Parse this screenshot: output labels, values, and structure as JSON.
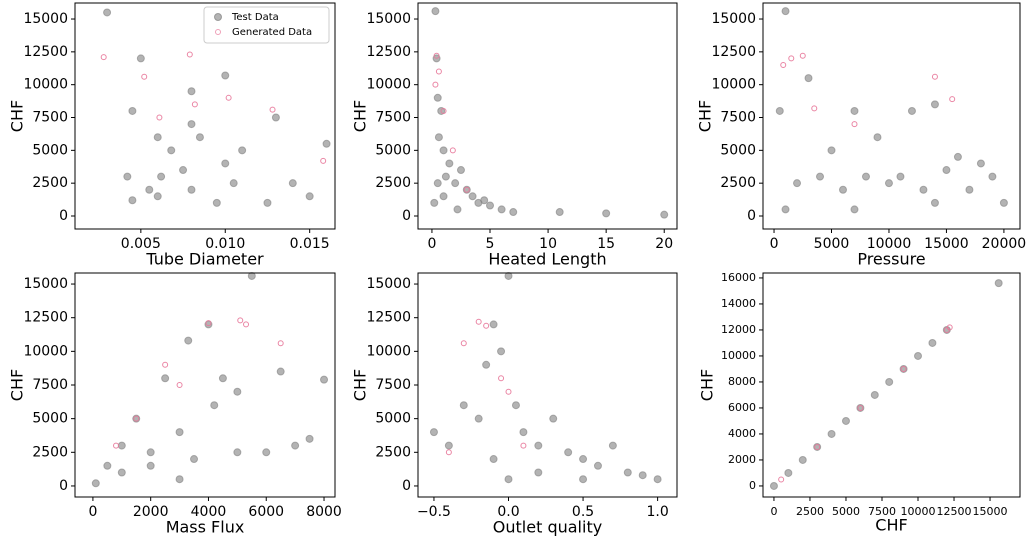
{
  "chart_data": [
    {
      "type": "scatter",
      "xlabel": "Tube Diameter",
      "ylabel": "CHF",
      "legend": "upper right",
      "xlim": [
        0.0011,
        0.0165
      ],
      "ylim": [
        -990,
        16220
      ],
      "xticks": [
        0.005,
        {
          "value": 0.01,
          "label": "0.010"
        },
        0.015
      ],
      "yticks": [
        0,
        2500,
        5000,
        7500,
        10000,
        12500,
        15000
      ],
      "series": [
        {
          "name": "Test Data",
          "color": "#808080",
          "marker": "filled",
          "x": [
            0.003,
            0.0042,
            0.0045,
            0.005,
            0.0055,
            0.006,
            0.006,
            0.0068,
            0.0075,
            0.008,
            0.008,
            0.008,
            0.0085,
            0.0095,
            0.01,
            0.01,
            0.0105,
            0.011,
            0.0125,
            0.013,
            0.014,
            0.015,
            0.016,
            0.0045,
            0.0062
          ],
          "values": [
            15500,
            3000,
            8000,
            12000,
            2000,
            6000,
            1500,
            5000,
            3500,
            9500,
            7000,
            2000,
            6000,
            1000,
            10700,
            4000,
            2500,
            5000,
            1000,
            7500,
            2500,
            1500,
            5500,
            1200,
            3000
          ]
        },
        {
          "name": "Generated Data",
          "color": "#e8789a",
          "marker": "hollow",
          "x": [
            0.0028,
            0.0052,
            0.0061,
            0.0079,
            0.0082,
            0.0102,
            0.0128,
            0.0158
          ],
          "values": [
            12100,
            10600,
            7500,
            12300,
            8500,
            9000,
            8100,
            4200
          ]
        }
      ]
    },
    {
      "type": "scatter",
      "xlabel": "Heated Length",
      "ylabel": "CHF",
      "xlim": [
        -1.2,
        21.1
      ],
      "ylim": [
        -990,
        16220
      ],
      "xticks": [
        0,
        5,
        10,
        15,
        20
      ],
      "yticks": [
        0,
        2500,
        5000,
        7500,
        10000,
        12500,
        15000
      ],
      "series": [
        {
          "color": "#808080",
          "marker": "filled",
          "x": [
            0.3,
            0.4,
            0.5,
            0.6,
            0.8,
            1,
            1.2,
            1.5,
            2,
            2.5,
            3,
            3.5,
            4,
            4.5,
            5,
            6,
            7,
            11,
            15,
            20,
            0.2,
            1,
            2.2,
            0.5
          ],
          "values": [
            15600,
            12000,
            9000,
            6000,
            8000,
            5000,
            3000,
            4000,
            2500,
            3500,
            2000,
            1500,
            1000,
            1200,
            800,
            500,
            300,
            300,
            200,
            100,
            1000,
            1500,
            500,
            2500
          ]
        },
        {
          "color": "#e8789a",
          "marker": "hollow",
          "x": [
            0.4,
            0.6,
            1,
            1.8,
            0.3,
            3
          ],
          "values": [
            12200,
            11000,
            8000,
            5000,
            10000,
            2000
          ]
        }
      ]
    },
    {
      "type": "scatter",
      "xlabel": "Pressure",
      "ylabel": "CHF",
      "xlim": [
        -960,
        21400
      ],
      "ylim": [
        -990,
        16220
      ],
      "xticks": [
        0,
        5000,
        10000,
        15000,
        20000
      ],
      "yticks": [
        0,
        2500,
        5000,
        7500,
        10000,
        12500,
        15000
      ],
      "series": [
        {
          "color": "#808080",
          "marker": "filled",
          "x": [
            1000,
            500,
            2000,
            3000,
            4000,
            5000,
            6000,
            7000,
            8000,
            9000,
            10000,
            11000,
            12000,
            13000,
            14000,
            15000,
            16000,
            17000,
            18000,
            19000,
            20000,
            14000,
            7000,
            1000
          ],
          "values": [
            15600,
            8000,
            2500,
            10500,
            3000,
            5000,
            2000,
            8000,
            3000,
            6000,
            2500,
            3000,
            8000,
            2000,
            8500,
            3500,
            4500,
            2000,
            4000,
            3000,
            1000,
            1000,
            500,
            500
          ]
        },
        {
          "color": "#e8789a",
          "marker": "hollow",
          "x": [
            1500,
            2500,
            3500,
            7000,
            14000,
            15500,
            800
          ],
          "values": [
            12000,
            12200,
            8200,
            7000,
            10600,
            8900,
            11500
          ]
        }
      ]
    },
    {
      "type": "scatter",
      "xlabel": "Mass Flux",
      "ylabel": "CHF",
      "xlim": [
        -620,
        8380
      ],
      "ylim": [
        -820,
        15820
      ],
      "xticks": [
        0,
        2000,
        4000,
        6000,
        8000
      ],
      "yticks": [
        0,
        2500,
        5000,
        7500,
        10000,
        12500,
        15000
      ],
      "series": [
        {
          "color": "#808080",
          "marker": "filled",
          "x": [
            100,
            500,
            1000,
            1500,
            2000,
            2500,
            3000,
            3300,
            3500,
            4000,
            4200,
            4500,
            5000,
            5000,
            5500,
            6000,
            6500,
            7000,
            7500,
            8000,
            2000,
            1000,
            3000
          ],
          "values": [
            200,
            1500,
            3000,
            5000,
            2500,
            8000,
            4000,
            10800,
            2000,
            12000,
            6000,
            8000,
            7000,
            2500,
            15600,
            2500,
            8500,
            3000,
            3500,
            7900,
            1500,
            1000,
            500
          ]
        },
        {
          "color": "#e8789a",
          "marker": "hollow",
          "x": [
            1500,
            2500,
            4000,
            5100,
            5300,
            6500,
            800,
            3000
          ],
          "values": [
            5000,
            9000,
            12100,
            12300,
            12000,
            10600,
            3000,
            7500
          ]
        }
      ]
    },
    {
      "type": "scatter",
      "xlabel": "Outlet quality",
      "ylabel": "CHF",
      "xlim": [
        -0.607,
        1.13
      ],
      "ylim": [
        -820,
        15820
      ],
      "xticks": [
        {
          "value": -0.5,
          "label": "−0.5"
        },
        {
          "value": 0,
          "label": "0.0"
        },
        0.5,
        {
          "value": 1,
          "label": "1.0"
        }
      ],
      "yticks": [
        0,
        2500,
        5000,
        7500,
        10000,
        12500,
        15000
      ],
      "series": [
        {
          "color": "#808080",
          "marker": "filled",
          "x": [
            -0.5,
            -0.4,
            -0.3,
            -0.2,
            -0.15,
            -0.1,
            -0.05,
            0,
            0.05,
            0.1,
            0.2,
            0.3,
            0.4,
            0.5,
            0.6,
            0.7,
            0.8,
            0.9,
            1.0,
            -0.1,
            0.0,
            0.2,
            0.5
          ],
          "values": [
            4000,
            3000,
            6000,
            5000,
            9000,
            12000,
            10000,
            15600,
            6000,
            4000,
            3000,
            5000,
            2500,
            2000,
            1500,
            3000,
            1000,
            800,
            500,
            2000,
            500,
            1000,
            500
          ]
        },
        {
          "color": "#e8789a",
          "marker": "hollow",
          "x": [
            -0.3,
            -0.2,
            -0.15,
            -0.05,
            0.0,
            -0.4,
            0.1
          ],
          "values": [
            10600,
            12200,
            11900,
            8000,
            7000,
            2500,
            3000
          ]
        }
      ]
    },
    {
      "type": "scatter",
      "xlabel": "CHF",
      "ylabel": "CHF",
      "small_ticks": true,
      "xlim": [
        -760,
        17080
      ],
      "ylim": [
        -850,
        16380
      ],
      "xticks": [
        0,
        2500,
        5000,
        7500,
        10000,
        12500,
        15000
      ],
      "yticks": [
        0,
        2000,
        4000,
        6000,
        8000,
        10000,
        12000,
        14000,
        16000
      ],
      "series": [
        {
          "color": "#808080",
          "marker": "filled",
          "x": [
            0,
            1000,
            2000,
            3000,
            4000,
            5000,
            6000,
            7000,
            8000,
            9000,
            10000,
            11000,
            12000,
            15600
          ],
          "values": [
            0,
            1000,
            2000,
            3000,
            4000,
            5000,
            6000,
            7000,
            8000,
            9000,
            10000,
            11000,
            12000,
            15600
          ]
        },
        {
          "color": "#e8789a",
          "marker": "hollow",
          "x": [
            500,
            3000,
            6000,
            9000,
            12200,
            12000
          ],
          "values": [
            500,
            3000,
            6000,
            9000,
            12200,
            12000
          ]
        }
      ]
    }
  ]
}
